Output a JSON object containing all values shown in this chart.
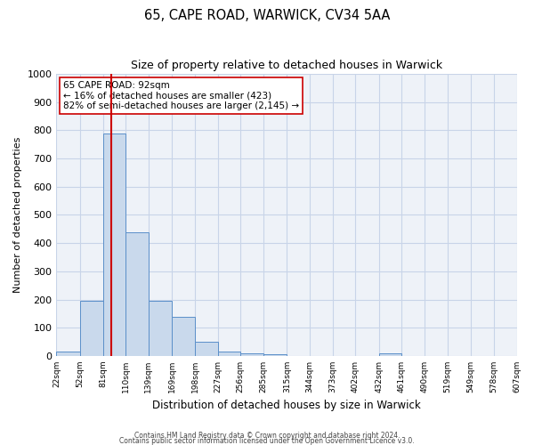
{
  "title": "65, CAPE ROAD, WARWICK, CV34 5AA",
  "subtitle": "Size of property relative to detached houses in Warwick",
  "xlabel": "Distribution of detached houses by size in Warwick",
  "ylabel": "Number of detached properties",
  "bin_edges": [
    22,
    52,
    81,
    110,
    139,
    169,
    198,
    227,
    256,
    285,
    315,
    344,
    373,
    402,
    432,
    461,
    490,
    519,
    549,
    578,
    607
  ],
  "bar_heights": [
    15,
    195,
    790,
    440,
    195,
    140,
    50,
    15,
    10,
    5,
    0,
    0,
    0,
    0,
    10,
    0,
    0,
    0,
    0,
    0
  ],
  "bar_color": "#c9d9ec",
  "bar_edgecolor": "#5b8fc9",
  "property_value": 92,
  "vline_color": "#cc0000",
  "annotation_box_edgecolor": "#cc0000",
  "annotation_line1": "65 CAPE ROAD: 92sqm",
  "annotation_line2": "← 16% of detached houses are smaller (423)",
  "annotation_line3": "82% of semi-detached houses are larger (2,145) →",
  "ylim": [
    0,
    1000
  ],
  "yticks": [
    0,
    100,
    200,
    300,
    400,
    500,
    600,
    700,
    800,
    900,
    1000
  ],
  "footnote1": "Contains HM Land Registry data © Crown copyright and database right 2024.",
  "footnote2": "Contains public sector information licensed under the Open Government Licence v3.0.",
  "background_color": "#ffffff",
  "plot_bg_color": "#eef2f8",
  "grid_color": "#c8d4e8",
  "tick_labels": [
    "22sqm",
    "52sqm",
    "81sqm",
    "110sqm",
    "139sqm",
    "169sqm",
    "198sqm",
    "227sqm",
    "256sqm",
    "285sqm",
    "315sqm",
    "344sqm",
    "373sqm",
    "402sqm",
    "432sqm",
    "461sqm",
    "490sqm",
    "519sqm",
    "549sqm",
    "578sqm",
    "607sqm"
  ]
}
